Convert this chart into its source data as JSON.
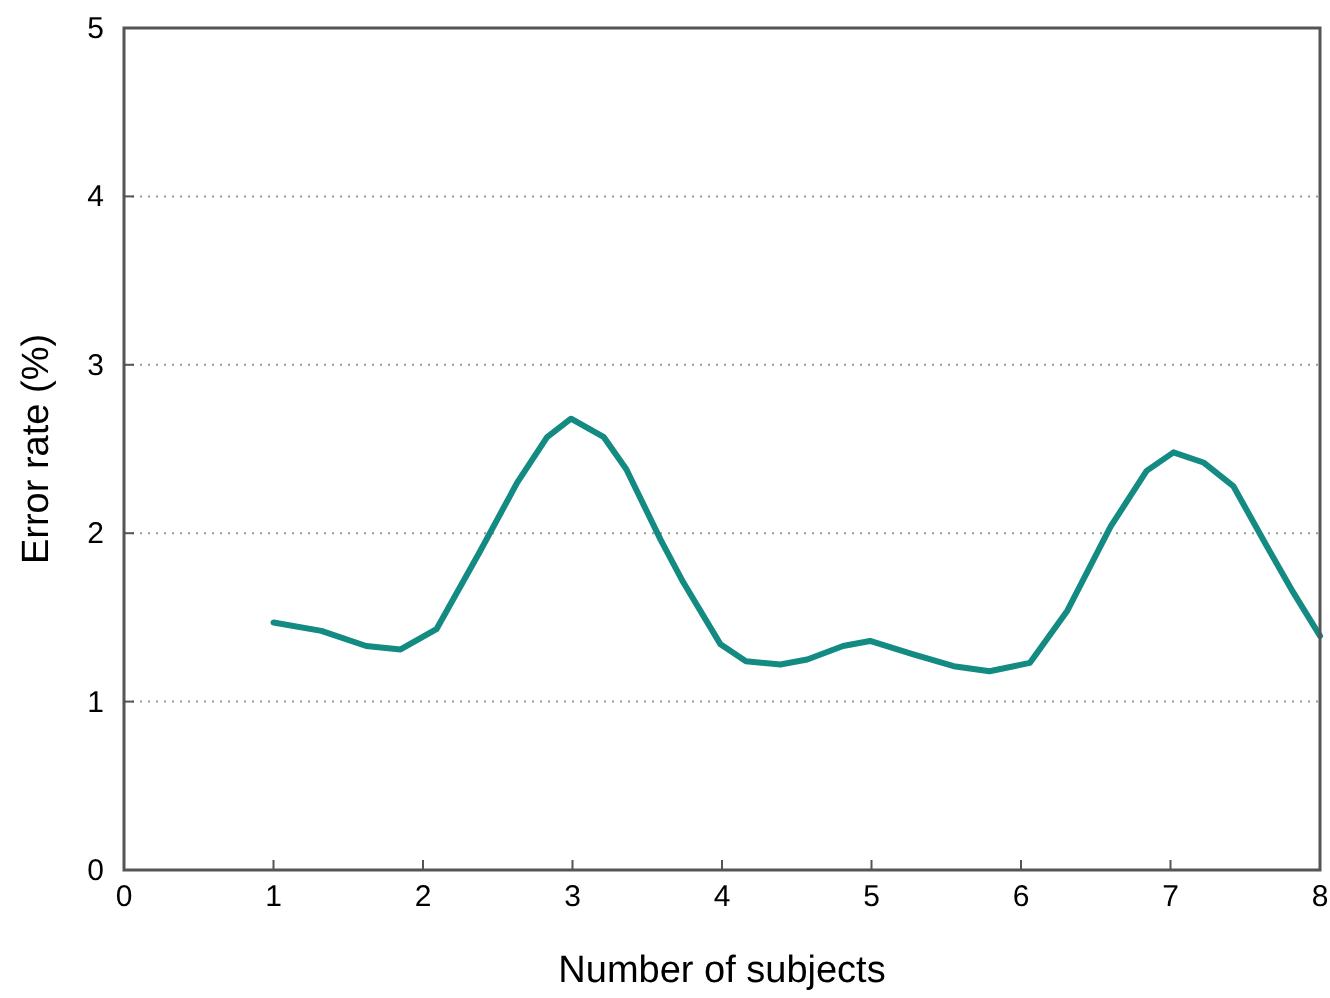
{
  "chart_data": {
    "type": "line",
    "xlabel": "Number of subjects",
    "ylabel": "Error rate (%)",
    "xlim": [
      0,
      8
    ],
    "xticks": [
      0,
      1,
      2,
      3,
      4,
      5,
      6,
      7,
      8
    ],
    "ylim": [
      0,
      5
    ],
    "yticks": [
      0,
      1,
      2,
      3,
      4,
      5
    ],
    "grid": "y",
    "marker": "none",
    "line_style": "solid",
    "series": [
      {
        "color": "#138a82",
        "x": [
          1.0,
          1.32,
          1.62,
          1.85,
          2.09,
          2.38,
          2.63,
          2.83,
          2.99,
          3.21,
          3.36,
          3.59,
          3.74,
          3.99,
          4.16,
          4.39,
          4.57,
          4.81,
          4.99,
          5.28,
          5.55,
          5.79,
          6.06,
          6.31,
          6.6,
          6.84,
          7.02,
          7.22,
          7.42,
          7.64,
          7.82,
          8.0
        ],
        "values": [
          1.47,
          1.42,
          1.33,
          1.31,
          1.43,
          1.89,
          2.3,
          2.57,
          2.68,
          2.57,
          2.38,
          1.96,
          1.71,
          1.34,
          1.24,
          1.22,
          1.25,
          1.33,
          1.36,
          1.28,
          1.21,
          1.18,
          1.23,
          1.54,
          2.04,
          2.37,
          2.48,
          2.42,
          2.28,
          1.93,
          1.65,
          1.39
        ]
      }
    ]
  }
}
